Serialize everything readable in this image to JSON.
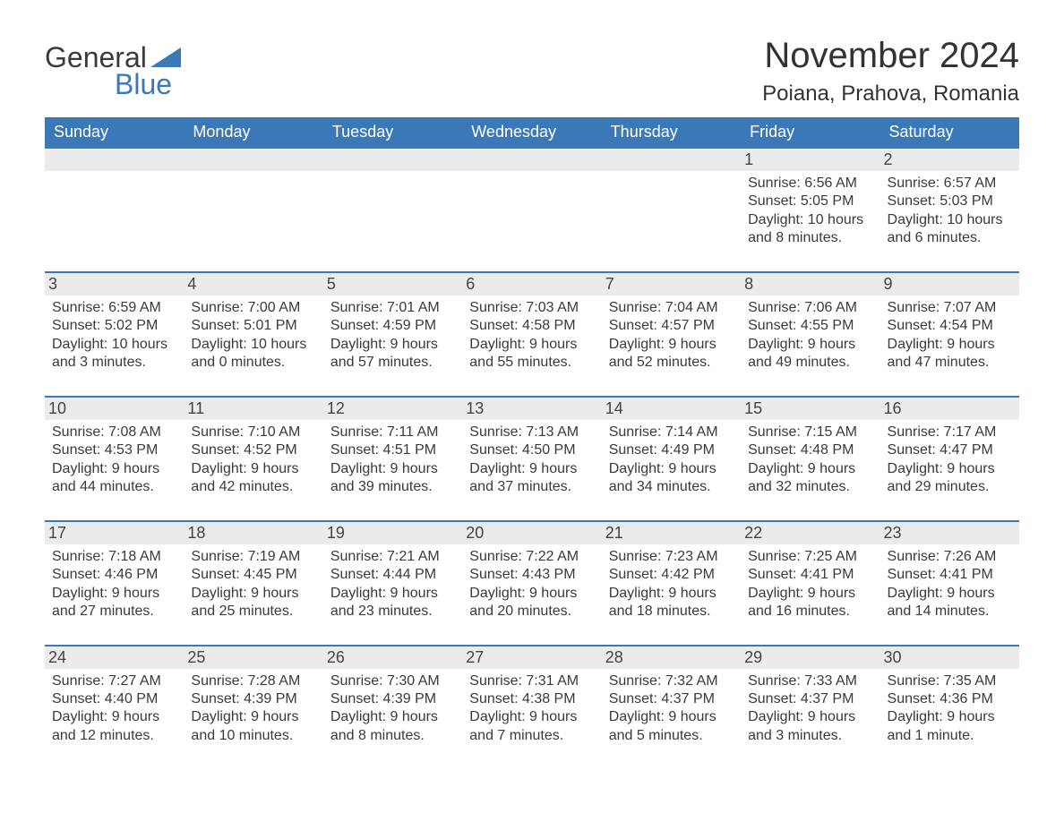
{
  "logo": {
    "top": "General",
    "bottom": "Blue",
    "mark_color": "#3a78b8"
  },
  "title": "November 2024",
  "location": "Poiana, Prahova, Romania",
  "colors": {
    "header_bg": "#3a78b8",
    "header_text": "#ffffff",
    "band_bg": "#ebebeb",
    "band_border": "#3a78b8",
    "body_text": "#3a3a3a",
    "page_bg": "#ffffff"
  },
  "fonts": {
    "title_size_pt": 30,
    "location_size_pt": 18,
    "header_size_pt": 14,
    "daynum_size_pt": 14,
    "body_size_pt": 12,
    "family": "Arial"
  },
  "day_headers": [
    "Sunday",
    "Monday",
    "Tuesday",
    "Wednesday",
    "Thursday",
    "Friday",
    "Saturday"
  ],
  "weeks": [
    [
      {
        "day": "",
        "sunrise": "",
        "sunset": "",
        "daylight": ""
      },
      {
        "day": "",
        "sunrise": "",
        "sunset": "",
        "daylight": ""
      },
      {
        "day": "",
        "sunrise": "",
        "sunset": "",
        "daylight": ""
      },
      {
        "day": "",
        "sunrise": "",
        "sunset": "",
        "daylight": ""
      },
      {
        "day": "",
        "sunrise": "",
        "sunset": "",
        "daylight": ""
      },
      {
        "day": "1",
        "sunrise": "Sunrise: 6:56 AM",
        "sunset": "Sunset: 5:05 PM",
        "daylight": "Daylight: 10 hours and 8 minutes."
      },
      {
        "day": "2",
        "sunrise": "Sunrise: 6:57 AM",
        "sunset": "Sunset: 5:03 PM",
        "daylight": "Daylight: 10 hours and 6 minutes."
      }
    ],
    [
      {
        "day": "3",
        "sunrise": "Sunrise: 6:59 AM",
        "sunset": "Sunset: 5:02 PM",
        "daylight": "Daylight: 10 hours and 3 minutes."
      },
      {
        "day": "4",
        "sunrise": "Sunrise: 7:00 AM",
        "sunset": "Sunset: 5:01 PM",
        "daylight": "Daylight: 10 hours and 0 minutes."
      },
      {
        "day": "5",
        "sunrise": "Sunrise: 7:01 AM",
        "sunset": "Sunset: 4:59 PM",
        "daylight": "Daylight: 9 hours and 57 minutes."
      },
      {
        "day": "6",
        "sunrise": "Sunrise: 7:03 AM",
        "sunset": "Sunset: 4:58 PM",
        "daylight": "Daylight: 9 hours and 55 minutes."
      },
      {
        "day": "7",
        "sunrise": "Sunrise: 7:04 AM",
        "sunset": "Sunset: 4:57 PM",
        "daylight": "Daylight: 9 hours and 52 minutes."
      },
      {
        "day": "8",
        "sunrise": "Sunrise: 7:06 AM",
        "sunset": "Sunset: 4:55 PM",
        "daylight": "Daylight: 9 hours and 49 minutes."
      },
      {
        "day": "9",
        "sunrise": "Sunrise: 7:07 AM",
        "sunset": "Sunset: 4:54 PM",
        "daylight": "Daylight: 9 hours and 47 minutes."
      }
    ],
    [
      {
        "day": "10",
        "sunrise": "Sunrise: 7:08 AM",
        "sunset": "Sunset: 4:53 PM",
        "daylight": "Daylight: 9 hours and 44 minutes."
      },
      {
        "day": "11",
        "sunrise": "Sunrise: 7:10 AM",
        "sunset": "Sunset: 4:52 PM",
        "daylight": "Daylight: 9 hours and 42 minutes."
      },
      {
        "day": "12",
        "sunrise": "Sunrise: 7:11 AM",
        "sunset": "Sunset: 4:51 PM",
        "daylight": "Daylight: 9 hours and 39 minutes."
      },
      {
        "day": "13",
        "sunrise": "Sunrise: 7:13 AM",
        "sunset": "Sunset: 4:50 PM",
        "daylight": "Daylight: 9 hours and 37 minutes."
      },
      {
        "day": "14",
        "sunrise": "Sunrise: 7:14 AM",
        "sunset": "Sunset: 4:49 PM",
        "daylight": "Daylight: 9 hours and 34 minutes."
      },
      {
        "day": "15",
        "sunrise": "Sunrise: 7:15 AM",
        "sunset": "Sunset: 4:48 PM",
        "daylight": "Daylight: 9 hours and 32 minutes."
      },
      {
        "day": "16",
        "sunrise": "Sunrise: 7:17 AM",
        "sunset": "Sunset: 4:47 PM",
        "daylight": "Daylight: 9 hours and 29 minutes."
      }
    ],
    [
      {
        "day": "17",
        "sunrise": "Sunrise: 7:18 AM",
        "sunset": "Sunset: 4:46 PM",
        "daylight": "Daylight: 9 hours and 27 minutes."
      },
      {
        "day": "18",
        "sunrise": "Sunrise: 7:19 AM",
        "sunset": "Sunset: 4:45 PM",
        "daylight": "Daylight: 9 hours and 25 minutes."
      },
      {
        "day": "19",
        "sunrise": "Sunrise: 7:21 AM",
        "sunset": "Sunset: 4:44 PM",
        "daylight": "Daylight: 9 hours and 23 minutes."
      },
      {
        "day": "20",
        "sunrise": "Sunrise: 7:22 AM",
        "sunset": "Sunset: 4:43 PM",
        "daylight": "Daylight: 9 hours and 20 minutes."
      },
      {
        "day": "21",
        "sunrise": "Sunrise: 7:23 AM",
        "sunset": "Sunset: 4:42 PM",
        "daylight": "Daylight: 9 hours and 18 minutes."
      },
      {
        "day": "22",
        "sunrise": "Sunrise: 7:25 AM",
        "sunset": "Sunset: 4:41 PM",
        "daylight": "Daylight: 9 hours and 16 minutes."
      },
      {
        "day": "23",
        "sunrise": "Sunrise: 7:26 AM",
        "sunset": "Sunset: 4:41 PM",
        "daylight": "Daylight: 9 hours and 14 minutes."
      }
    ],
    [
      {
        "day": "24",
        "sunrise": "Sunrise: 7:27 AM",
        "sunset": "Sunset: 4:40 PM",
        "daylight": "Daylight: 9 hours and 12 minutes."
      },
      {
        "day": "25",
        "sunrise": "Sunrise: 7:28 AM",
        "sunset": "Sunset: 4:39 PM",
        "daylight": "Daylight: 9 hours and 10 minutes."
      },
      {
        "day": "26",
        "sunrise": "Sunrise: 7:30 AM",
        "sunset": "Sunset: 4:39 PM",
        "daylight": "Daylight: 9 hours and 8 minutes."
      },
      {
        "day": "27",
        "sunrise": "Sunrise: 7:31 AM",
        "sunset": "Sunset: 4:38 PM",
        "daylight": "Daylight: 9 hours and 7 minutes."
      },
      {
        "day": "28",
        "sunrise": "Sunrise: 7:32 AM",
        "sunset": "Sunset: 4:37 PM",
        "daylight": "Daylight: 9 hours and 5 minutes."
      },
      {
        "day": "29",
        "sunrise": "Sunrise: 7:33 AM",
        "sunset": "Sunset: 4:37 PM",
        "daylight": "Daylight: 9 hours and 3 minutes."
      },
      {
        "day": "30",
        "sunrise": "Sunrise: 7:35 AM",
        "sunset": "Sunset: 4:36 PM",
        "daylight": "Daylight: 9 hours and 1 minute."
      }
    ]
  ]
}
